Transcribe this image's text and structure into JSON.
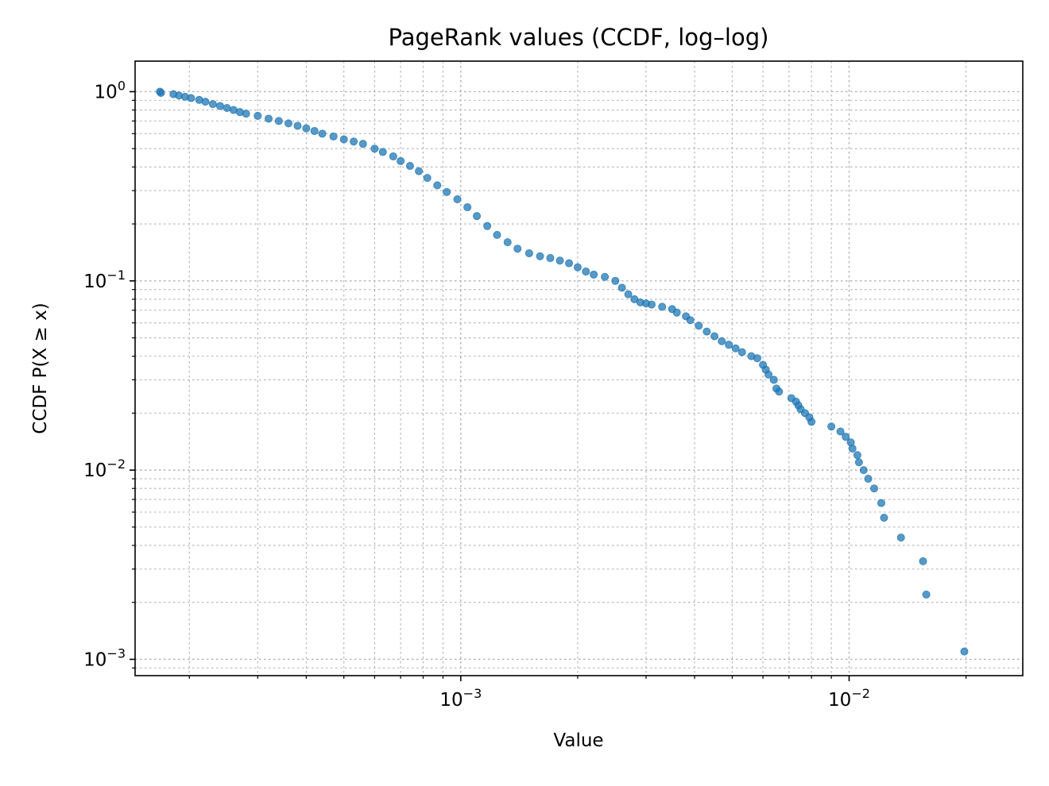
{
  "chart_data": {
    "type": "scatter",
    "title": "PageRank values (CCDF, log–log)",
    "xlabel": "Value",
    "ylabel": "CCDF  P(X ≥ x)",
    "xscale": "log",
    "yscale": "log",
    "xlim": [
      0.000145,
      0.028
    ],
    "ylim": [
      0.00082,
      1.45
    ],
    "grid": "major and minor, dotted",
    "color": "#1f77b4",
    "x_ticks": [
      {
        "base": "10",
        "exp": "−3",
        "value": 0.001
      },
      {
        "base": "10",
        "exp": "−2",
        "value": 0.01
      }
    ],
    "y_ticks": [
      {
        "base": "10",
        "exp": "0",
        "value": 1
      },
      {
        "base": "10",
        "exp": "−1",
        "value": 0.1
      },
      {
        "base": "10",
        "exp": "−2",
        "value": 0.01
      },
      {
        "base": "10",
        "exp": "−3",
        "value": 0.001
      }
    ],
    "points": [
      [
        0.000168,
        1.0
      ],
      [
        0.000169,
        0.985
      ],
      [
        0.000182,
        0.97
      ],
      [
        0.000188,
        0.955
      ],
      [
        0.000195,
        0.94
      ],
      [
        0.000202,
        0.925
      ],
      [
        0.000212,
        0.905
      ],
      [
        0.00022,
        0.885
      ],
      [
        0.00023,
        0.86
      ],
      [
        0.00024,
        0.84
      ],
      [
        0.00025,
        0.82
      ],
      [
        0.00026,
        0.8
      ],
      [
        0.00027,
        0.78
      ],
      [
        0.00028,
        0.765
      ],
      [
        0.0003,
        0.745
      ],
      [
        0.00032,
        0.72
      ],
      [
        0.00034,
        0.7
      ],
      [
        0.00036,
        0.68
      ],
      [
        0.00038,
        0.66
      ],
      [
        0.0004,
        0.64
      ],
      [
        0.00042,
        0.62
      ],
      [
        0.00044,
        0.6
      ],
      [
        0.00047,
        0.58
      ],
      [
        0.0005,
        0.56
      ],
      [
        0.00053,
        0.545
      ],
      [
        0.00056,
        0.53
      ],
      [
        0.0006,
        0.5
      ],
      [
        0.00063,
        0.48
      ],
      [
        0.00067,
        0.455
      ],
      [
        0.0007,
        0.43
      ],
      [
        0.00074,
        0.405
      ],
      [
        0.00078,
        0.38
      ],
      [
        0.00082,
        0.35
      ],
      [
        0.00087,
        0.32
      ],
      [
        0.00092,
        0.295
      ],
      [
        0.00098,
        0.27
      ],
      [
        0.00104,
        0.245
      ],
      [
        0.0011,
        0.22
      ],
      [
        0.00117,
        0.195
      ],
      [
        0.00124,
        0.175
      ],
      [
        0.00132,
        0.16
      ],
      [
        0.0014,
        0.148
      ],
      [
        0.0015,
        0.14
      ],
      [
        0.0016,
        0.135
      ],
      [
        0.0017,
        0.132
      ],
      [
        0.0018,
        0.128
      ],
      [
        0.0019,
        0.124
      ],
      [
        0.002,
        0.118
      ],
      [
        0.0021,
        0.112
      ],
      [
        0.0022,
        0.108
      ],
      [
        0.00235,
        0.105
      ],
      [
        0.0025,
        0.1
      ],
      [
        0.0026,
        0.092
      ],
      [
        0.0027,
        0.085
      ],
      [
        0.0028,
        0.08
      ],
      [
        0.0029,
        0.077
      ],
      [
        0.003,
        0.076
      ],
      [
        0.0031,
        0.075
      ],
      [
        0.0033,
        0.073
      ],
      [
        0.0035,
        0.071
      ],
      [
        0.0036,
        0.068
      ],
      [
        0.0038,
        0.065
      ],
      [
        0.0039,
        0.062
      ],
      [
        0.0041,
        0.058
      ],
      [
        0.0043,
        0.054
      ],
      [
        0.0045,
        0.051
      ],
      [
        0.0047,
        0.048
      ],
      [
        0.0049,
        0.046
      ],
      [
        0.0051,
        0.044
      ],
      [
        0.0053,
        0.042
      ],
      [
        0.0056,
        0.04
      ],
      [
        0.0058,
        0.039
      ],
      [
        0.006,
        0.036
      ],
      [
        0.0061,
        0.034
      ],
      [
        0.0062,
        0.032
      ],
      [
        0.0064,
        0.03
      ],
      [
        0.0065,
        0.027
      ],
      [
        0.0066,
        0.026
      ],
      [
        0.0071,
        0.024
      ],
      [
        0.0073,
        0.023
      ],
      [
        0.0074,
        0.022
      ],
      [
        0.0075,
        0.021
      ],
      [
        0.0077,
        0.02
      ],
      [
        0.0079,
        0.019
      ],
      [
        0.008,
        0.018
      ],
      [
        0.009,
        0.017
      ],
      [
        0.0095,
        0.016
      ],
      [
        0.0098,
        0.015
      ],
      [
        0.0101,
        0.014
      ],
      [
        0.0102,
        0.013
      ],
      [
        0.0105,
        0.012
      ],
      [
        0.0106,
        0.011
      ],
      [
        0.0109,
        0.01
      ],
      [
        0.0112,
        0.009
      ],
      [
        0.0116,
        0.008
      ],
      [
        0.0121,
        0.0067
      ],
      [
        0.0123,
        0.0056
      ],
      [
        0.0136,
        0.0044
      ],
      [
        0.0155,
        0.0033
      ],
      [
        0.0158,
        0.0022
      ],
      [
        0.0198,
        0.0011
      ]
    ]
  }
}
